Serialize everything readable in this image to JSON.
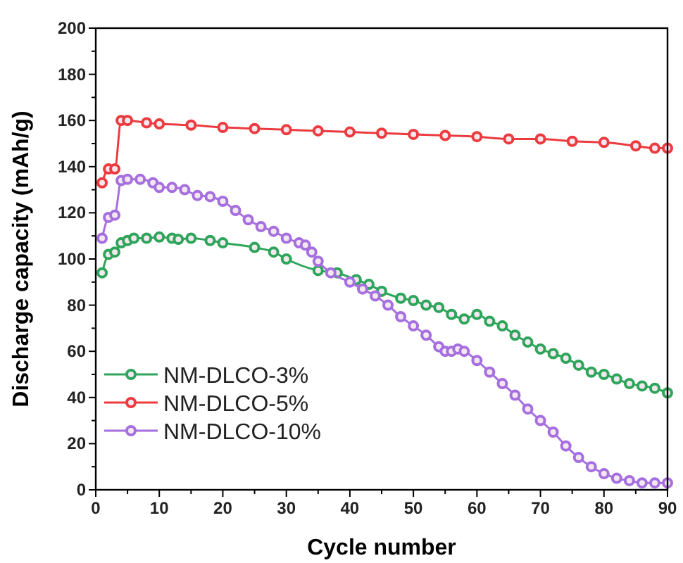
{
  "chart_data": {
    "type": "line",
    "xlabel": "Cycle number",
    "ylabel": "Discharge capacity (mAh/g)",
    "xlim": [
      0,
      90
    ],
    "ylim": [
      0,
      200
    ],
    "xticks": [
      0,
      {
        "value": 5,
        "label": null
      },
      10,
      {
        "value": 15,
        "label": null
      },
      20,
      {
        "value": 25,
        "label": null
      },
      30,
      {
        "value": 35,
        "label": null
      },
      40,
      {
        "value": 45,
        "label": null
      },
      50,
      {
        "value": 55,
        "label": null
      },
      60,
      {
        "value": 65,
        "label": null
      },
      70,
      {
        "value": 75,
        "label": null
      },
      80,
      {
        "value": 85,
        "label": null
      },
      90
    ],
    "yticks": [
      0,
      {
        "value": 10,
        "label": null
      },
      20,
      {
        "value": 30,
        "label": null
      },
      40,
      {
        "value": 50,
        "label": null
      },
      60,
      {
        "value": 70,
        "label": null
      },
      80,
      {
        "value": 90,
        "label": null
      },
      100,
      {
        "value": 110,
        "label": null
      },
      120,
      {
        "value": 130,
        "label": null
      },
      140,
      {
        "value": 150,
        "label": null
      },
      160,
      {
        "value": 170,
        "label": null
      },
      180,
      {
        "value": 190,
        "label": null
      },
      200
    ],
    "grid": false,
    "legend": "bottom left",
    "marker": "circle",
    "line_style": "solid",
    "series": [
      {
        "name": "NM-DLCO-3%",
        "color": "#2ea55a",
        "x": [
          1,
          2,
          3,
          4,
          5,
          6,
          8,
          10,
          12,
          13,
          15,
          18,
          20,
          25,
          28,
          30,
          35,
          38,
          41,
          43,
          45,
          48,
          50,
          52,
          54,
          56,
          58,
          60,
          62,
          64,
          66,
          68,
          70,
          72,
          74,
          76,
          78,
          80,
          82,
          84,
          86,
          88,
          90
        ],
        "values": [
          94,
          102,
          103,
          107,
          108,
          109,
          109,
          109.5,
          109,
          108.5,
          109,
          108,
          107,
          105,
          103,
          100,
          95,
          94,
          91,
          89,
          86,
          83,
          82,
          80,
          79,
          76,
          74,
          76,
          73,
          71,
          67,
          64,
          61,
          59,
          57,
          54,
          51,
          50,
          48,
          46,
          45,
          44,
          42
        ]
      },
      {
        "name": "NM-DLCO-5%",
        "color": "#ec3b3f",
        "x": [
          1,
          2,
          3,
          4,
          5,
          8,
          10,
          15,
          20,
          25,
          30,
          35,
          40,
          45,
          50,
          55,
          60,
          65,
          70,
          75,
          80,
          85,
          88,
          90
        ],
        "values": [
          133,
          139,
          139,
          160,
          160,
          159,
          158.5,
          158,
          157,
          156.5,
          156,
          155.5,
          155,
          154.5,
          154,
          153.5,
          153,
          152,
          152,
          151,
          150.5,
          149,
          148,
          148
        ]
      },
      {
        "name": "NM-DLCO-10%",
        "color": "#a66fe0",
        "x": [
          1,
          2,
          3,
          4,
          5,
          7,
          9,
          10,
          12,
          14,
          16,
          18,
          20,
          22,
          24,
          26,
          28,
          30,
          32,
          33,
          34,
          35,
          37,
          40,
          42,
          44,
          46,
          48,
          50,
          52,
          54,
          55,
          56,
          57,
          58,
          60,
          62,
          64,
          66,
          68,
          70,
          72,
          74,
          76,
          78,
          80,
          82,
          84,
          86,
          88,
          90
        ],
        "values": [
          109,
          118,
          119,
          134,
          134.5,
          134.5,
          133,
          131,
          131,
          130,
          127.5,
          127,
          125,
          121,
          117,
          114,
          112,
          109,
          107,
          106,
          103,
          99,
          94,
          90,
          87,
          84,
          80,
          75,
          71,
          67,
          62,
          60,
          60,
          61,
          60,
          56,
          51,
          46,
          41,
          35,
          30,
          25,
          19,
          14,
          10,
          7,
          5,
          4,
          3,
          3,
          3
        ]
      }
    ]
  }
}
